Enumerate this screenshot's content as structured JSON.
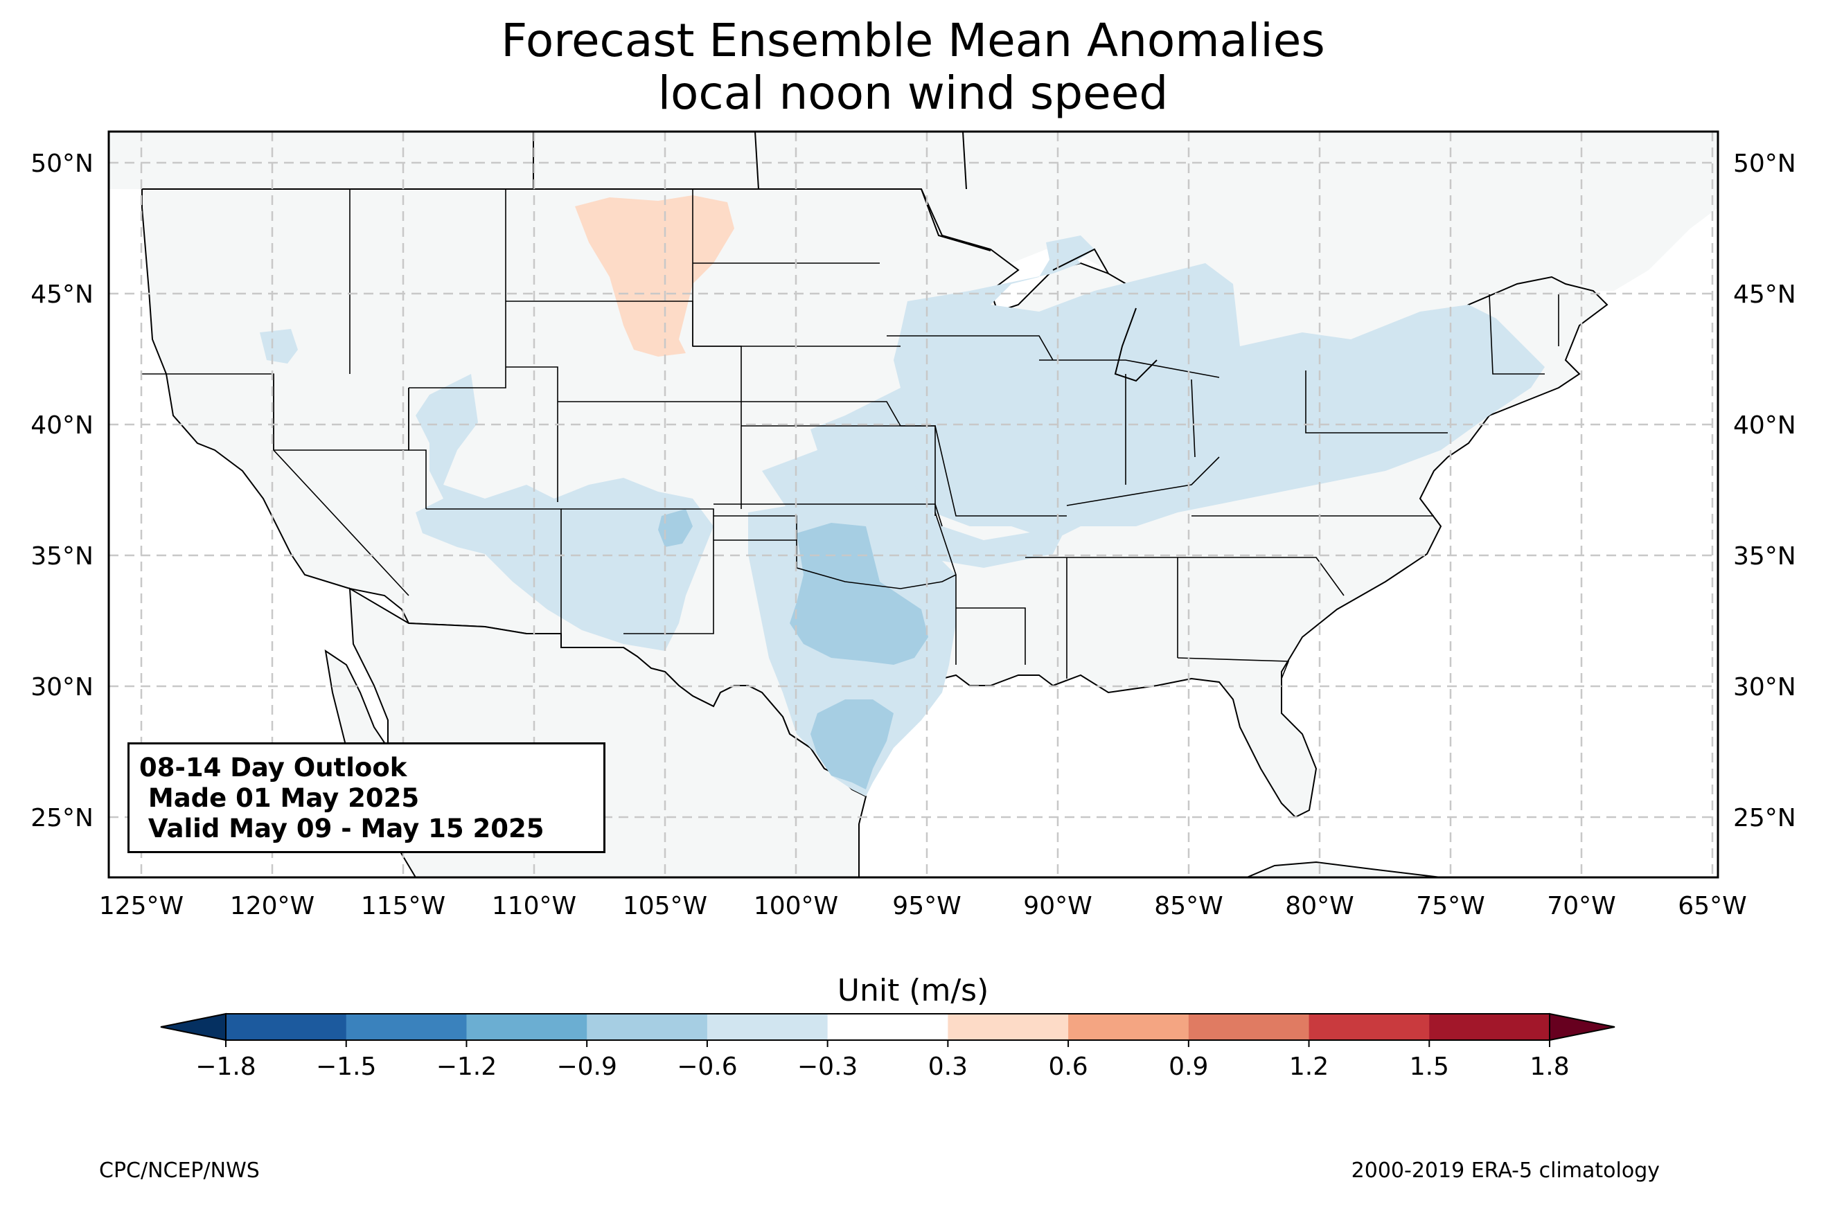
{
  "title": {
    "line1": "Forecast Ensemble Mean Anomalies",
    "line2": "local noon wind speed"
  },
  "map": {
    "projection": "PlateCarree",
    "lon_range": [
      -126.3,
      -64.8
    ],
    "lat_range": [
      22.8,
      51.2
    ],
    "lon_ticks": [
      "125°W",
      "120°W",
      "115°W",
      "110°W",
      "105°W",
      "100°W",
      "95°W",
      "90°W",
      "85°W",
      "80°W",
      "75°W",
      "70°W",
      "65°W"
    ],
    "lat_ticks": [
      "50°N",
      "45°N",
      "40°N",
      "35°N",
      "30°N",
      "25°N"
    ],
    "gridlines": "dashed light gray",
    "land_color": "#f5f7f7",
    "anomaly_regions": [
      {
        "name": "Northern Plains (MT/ND/SD)",
        "range": "0.3 to 0.6",
        "color": "#fddbc7"
      },
      {
        "name": "Midwest / Ohio Valley / Northeast",
        "range": "-0.3 to -0.6",
        "color": "#d1e5f0"
      },
      {
        "name": "Southwest / Southern Rockies",
        "range": "-0.3 to -0.6",
        "color": "#d1e5f0"
      },
      {
        "name": "Southern Plains (OK/TX)",
        "range": "-0.6 to -0.9",
        "color": "#a6cee3"
      },
      {
        "name": "South Texas coast",
        "range": "-0.6 to -0.9",
        "color": "#a6cee3"
      }
    ]
  },
  "outlook": {
    "line1": "08-14 Day Outlook",
    "line2": " Made 01 May 2025",
    "line3": " Valid May 09 - May 15 2025"
  },
  "colorbar": {
    "label": "Unit (m/s)",
    "ticks": [
      "−1.8",
      "−1.5",
      "−1.2",
      "−0.9",
      "−0.6",
      "−0.3",
      "0.3",
      "0.6",
      "0.9",
      "1.2",
      "1.5",
      "1.8"
    ],
    "colors": [
      "#1c5a9e",
      "#3a82bd",
      "#6baed2",
      "#a6cee3",
      "#d1e5f0",
      "#ffffff",
      "#fddbc7",
      "#f4a582",
      "#e07b62",
      "#c93a3e",
      "#a2172a"
    ],
    "under_color": "#053061",
    "over_color": "#67001f"
  },
  "credits": {
    "left": "CPC/NCEP/NWS",
    "right": "2000-2019 ERA-5 climatology"
  }
}
